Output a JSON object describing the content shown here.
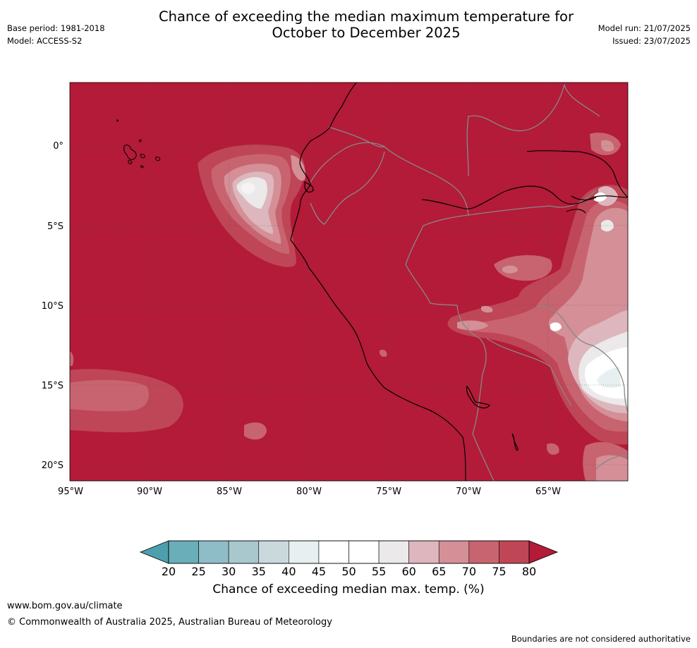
{
  "title_line1": "Chance of exceeding the median maximum temperature for",
  "title_line2": "October to December 2025",
  "meta": {
    "base_period": "Base period: 1981-2018",
    "model": "Model: ACCESS-S2",
    "model_run": "Model run: 21/07/2025",
    "issued": "Issued: 23/07/2025"
  },
  "map": {
    "lon_range": [
      -95,
      -60
    ],
    "lat_range": [
      -21,
      4
    ],
    "background_value": 80,
    "lon_ticks": [
      {
        "lon": -95,
        "label": "95°W"
      },
      {
        "lon": -90,
        "label": "90°W"
      },
      {
        "lon": -85,
        "label": "85°W"
      },
      {
        "lon": -80,
        "label": "80°W"
      },
      {
        "lon": -75,
        "label": "75°W"
      },
      {
        "lon": -70,
        "label": "70°W"
      },
      {
        "lon": -65,
        "label": "65°W"
      }
    ],
    "lat_ticks": [
      {
        "lat": 0,
        "label": "0°"
      },
      {
        "lat": -5,
        "label": "5°S"
      },
      {
        "lat": -10,
        "label": "10°S"
      },
      {
        "lat": -15,
        "label": "15°S"
      },
      {
        "lat": -20,
        "label": "20°S"
      }
    ],
    "grid": true
  },
  "colorbar": {
    "ticks": [
      "20",
      "25",
      "30",
      "35",
      "40",
      "45",
      "50",
      "55",
      "60",
      "65",
      "70",
      "75",
      "80"
    ],
    "colors": [
      "#6aaeba",
      "#8ebcc7",
      "#a9c8ce",
      "#cad9dc",
      "#e8eff1",
      "#ffffff",
      "#ffffff",
      "#ebe9ea",
      "#ddb7bd",
      "#d48f97",
      "#c8646f",
      "#bf4656"
    ],
    "under_color": "#4e9fad",
    "over_color": "#b31b38",
    "label": "Chance of exceeding median max. temp. (%)"
  },
  "footer": {
    "url": "www.bom.gov.au/climate",
    "copyright": "© Commonwealth of Australia 2025, Australian Bureau of Meteorology",
    "note": "Boundaries are not considered authoritative"
  }
}
